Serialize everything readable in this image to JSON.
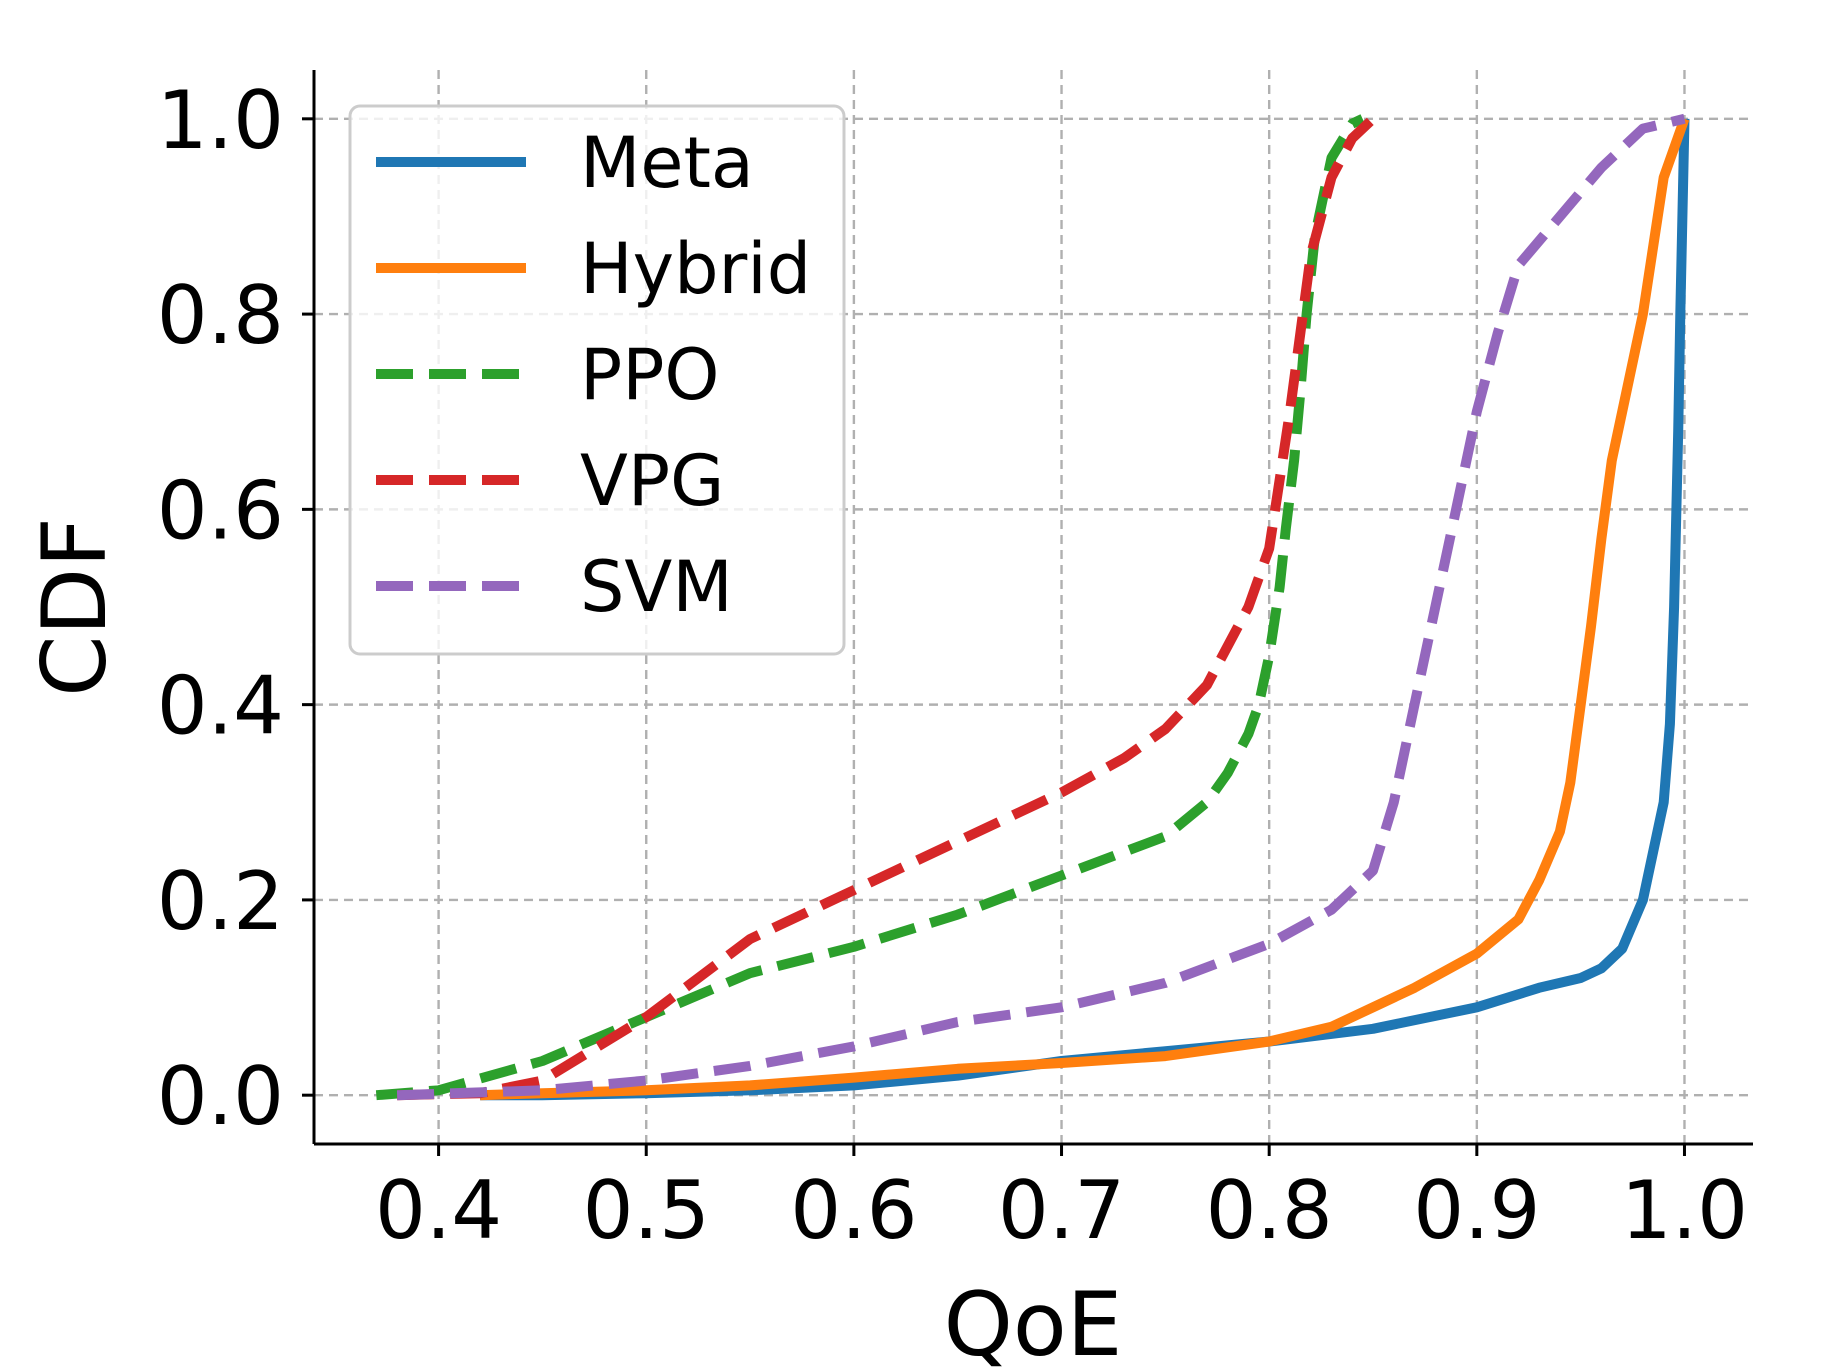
{
  "chart_data": {
    "type": "line",
    "title": "",
    "xlabel": "QoE",
    "ylabel": "CDF",
    "xlim": [
      0.34,
      1.033
    ],
    "ylim": [
      -0.05,
      1.05
    ],
    "xticks": [
      0.4,
      0.5,
      0.6,
      0.7,
      0.8,
      0.9,
      1.0
    ],
    "xtick_labels": [
      "0.4",
      "0.5",
      "0.6",
      "0.7",
      "0.8",
      "0.9",
      "1.0"
    ],
    "yticks": [
      0.0,
      0.2,
      0.4,
      0.6,
      0.8,
      1.0
    ],
    "ytick_labels": [
      "0.0",
      "0.2",
      "0.4",
      "0.6",
      "0.8",
      "1.0"
    ],
    "grid": true,
    "legend_position": "top-left",
    "series": [
      {
        "name": "Meta",
        "color": "#1f77b4",
        "style": "solid",
        "points": [
          [
            0.42,
            0.0
          ],
          [
            0.45,
            0.0
          ],
          [
            0.5,
            0.002
          ],
          [
            0.55,
            0.005
          ],
          [
            0.6,
            0.01
          ],
          [
            0.65,
            0.02
          ],
          [
            0.7,
            0.035
          ],
          [
            0.75,
            0.045
          ],
          [
            0.8,
            0.055
          ],
          [
            0.85,
            0.068
          ],
          [
            0.9,
            0.09
          ],
          [
            0.93,
            0.11
          ],
          [
            0.95,
            0.12
          ],
          [
            0.96,
            0.13
          ],
          [
            0.97,
            0.15
          ],
          [
            0.98,
            0.2
          ],
          [
            0.985,
            0.25
          ],
          [
            0.99,
            0.3
          ],
          [
            0.993,
            0.38
          ],
          [
            0.995,
            0.5
          ],
          [
            0.997,
            0.68
          ],
          [
            0.998,
            0.8
          ],
          [
            1.0,
            1.0
          ]
        ]
      },
      {
        "name": "Hybrid",
        "color": "#ff7f0e",
        "style": "solid",
        "points": [
          [
            0.42,
            0.0
          ],
          [
            0.45,
            0.002
          ],
          [
            0.5,
            0.005
          ],
          [
            0.55,
            0.01
          ],
          [
            0.6,
            0.018
          ],
          [
            0.65,
            0.027
          ],
          [
            0.7,
            0.033
          ],
          [
            0.75,
            0.04
          ],
          [
            0.8,
            0.055
          ],
          [
            0.83,
            0.07
          ],
          [
            0.85,
            0.09
          ],
          [
            0.87,
            0.11
          ],
          [
            0.9,
            0.145
          ],
          [
            0.92,
            0.18
          ],
          [
            0.93,
            0.22
          ],
          [
            0.94,
            0.27
          ],
          [
            0.945,
            0.32
          ],
          [
            0.95,
            0.4
          ],
          [
            0.955,
            0.48
          ],
          [
            0.96,
            0.57
          ],
          [
            0.965,
            0.65
          ],
          [
            0.97,
            0.7
          ],
          [
            0.98,
            0.8
          ],
          [
            0.99,
            0.94
          ],
          [
            1.0,
            1.0
          ]
        ]
      },
      {
        "name": "PPO",
        "color": "#2ca02c",
        "style": "dashed",
        "points": [
          [
            0.37,
            0.0
          ],
          [
            0.4,
            0.005
          ],
          [
            0.45,
            0.035
          ],
          [
            0.5,
            0.08
          ],
          [
            0.55,
            0.125
          ],
          [
            0.6,
            0.152
          ],
          [
            0.65,
            0.185
          ],
          [
            0.7,
            0.225
          ],
          [
            0.75,
            0.265
          ],
          [
            0.77,
            0.3
          ],
          [
            0.78,
            0.33
          ],
          [
            0.79,
            0.37
          ],
          [
            0.795,
            0.4
          ],
          [
            0.8,
            0.45
          ],
          [
            0.805,
            0.52
          ],
          [
            0.808,
            0.58
          ],
          [
            0.812,
            0.65
          ],
          [
            0.815,
            0.72
          ],
          [
            0.818,
            0.8
          ],
          [
            0.822,
            0.88
          ],
          [
            0.83,
            0.96
          ],
          [
            0.84,
            0.995
          ],
          [
            0.845,
            1.0
          ]
        ]
      },
      {
        "name": "VPG",
        "color": "#d62728",
        "style": "dashed",
        "points": [
          [
            0.38,
            0.0
          ],
          [
            0.42,
            0.002
          ],
          [
            0.45,
            0.015
          ],
          [
            0.5,
            0.08
          ],
          [
            0.55,
            0.16
          ],
          [
            0.6,
            0.21
          ],
          [
            0.65,
            0.26
          ],
          [
            0.7,
            0.31
          ],
          [
            0.73,
            0.345
          ],
          [
            0.75,
            0.375
          ],
          [
            0.77,
            0.42
          ],
          [
            0.79,
            0.5
          ],
          [
            0.8,
            0.56
          ],
          [
            0.805,
            0.63
          ],
          [
            0.81,
            0.7
          ],
          [
            0.815,
            0.78
          ],
          [
            0.82,
            0.86
          ],
          [
            0.83,
            0.94
          ],
          [
            0.84,
            0.98
          ],
          [
            0.85,
            1.0
          ]
        ]
      },
      {
        "name": "SVM",
        "color": "#9467bd",
        "style": "dashed",
        "points": [
          [
            0.38,
            0.0
          ],
          [
            0.45,
            0.005
          ],
          [
            0.5,
            0.015
          ],
          [
            0.55,
            0.03
          ],
          [
            0.6,
            0.05
          ],
          [
            0.65,
            0.075
          ],
          [
            0.7,
            0.09
          ],
          [
            0.75,
            0.115
          ],
          [
            0.8,
            0.155
          ],
          [
            0.83,
            0.19
          ],
          [
            0.85,
            0.23
          ],
          [
            0.86,
            0.3
          ],
          [
            0.87,
            0.4
          ],
          [
            0.88,
            0.5
          ],
          [
            0.89,
            0.6
          ],
          [
            0.9,
            0.7
          ],
          [
            0.91,
            0.78
          ],
          [
            0.92,
            0.85
          ],
          [
            0.94,
            0.9
          ],
          [
            0.96,
            0.95
          ],
          [
            0.98,
            0.99
          ],
          [
            1.0,
            1.0
          ]
        ]
      }
    ]
  }
}
